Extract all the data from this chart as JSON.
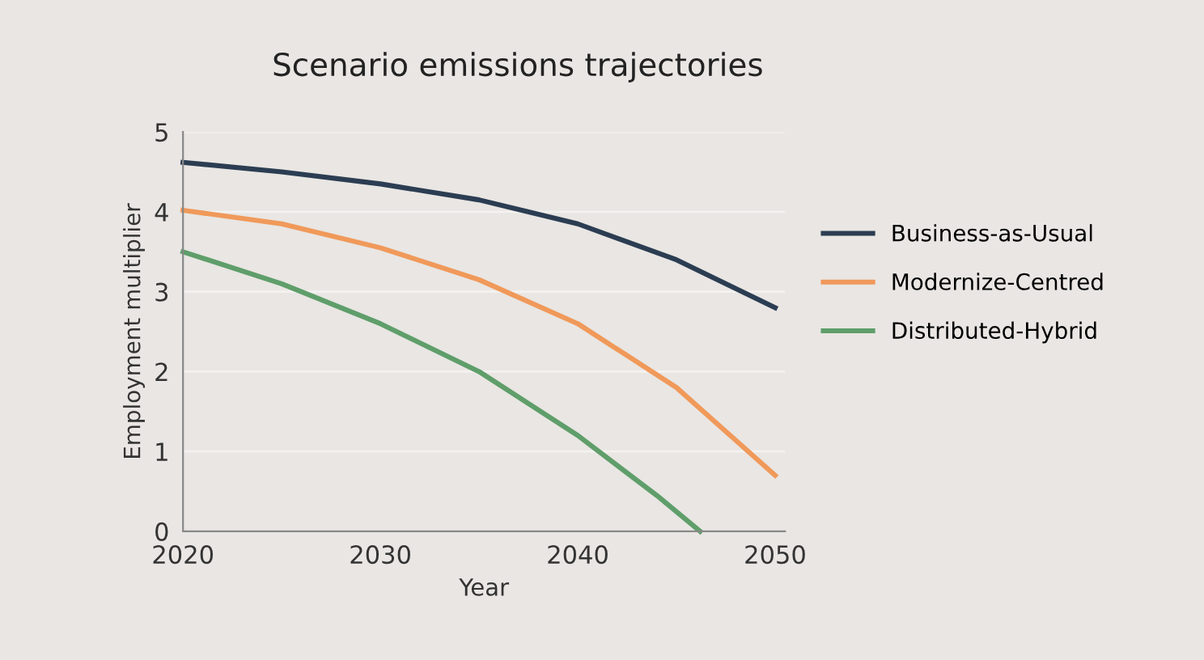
{
  "chart_data": {
    "type": "line",
    "title": "Scenario emissions trajectories",
    "xlabel": "Year",
    "ylabel": "Employment multiplier",
    "xlim": [
      2020,
      2050.5
    ],
    "xticks": [
      2020,
      2030,
      2040,
      2050
    ],
    "ylim": [
      0,
      5
    ],
    "yticks": [
      0,
      1,
      2,
      3,
      4,
      5
    ],
    "grid": "y",
    "legend": "right",
    "line_style": "solid",
    "series": [
      {
        "name": "Business-as-Usual",
        "color": "#2b3d52",
        "x": [
          2020,
          2025,
          2030,
          2035,
          2040,
          2045,
          2050
        ],
        "values": [
          4.62,
          4.5,
          4.35,
          4.15,
          3.85,
          3.4,
          2.8
        ]
      },
      {
        "name": "Modernize-Centred",
        "color": "#f0995a",
        "x": [
          2020,
          2025,
          2030,
          2035,
          2040,
          2045,
          2050
        ],
        "values": [
          4.02,
          3.85,
          3.55,
          3.15,
          2.6,
          1.8,
          0.7
        ]
      },
      {
        "name": "Distributed-Hybrid",
        "color": "#5f9e6a",
        "x": [
          2020,
          2025,
          2030,
          2035,
          2040,
          2044,
          2046.2
        ],
        "values": [
          3.5,
          3.1,
          2.6,
          2.0,
          1.2,
          0.45,
          0
        ]
      }
    ]
  }
}
